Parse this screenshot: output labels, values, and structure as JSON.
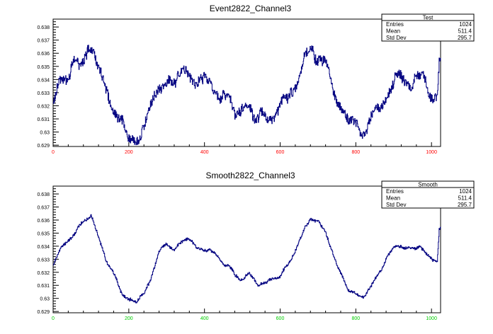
{
  "chart_data": [
    {
      "type": "line",
      "title": "Event2822_Channel3",
      "xlim": [
        0,
        1024
      ],
      "ylim": [
        0.6289,
        0.6386
      ],
      "xticks": [
        0,
        200,
        400,
        600,
        800,
        1000
      ],
      "yticks": [
        0.629,
        0.63,
        0.631,
        0.632,
        0.633,
        0.634,
        0.635,
        0.636,
        0.637,
        0.638
      ],
      "xtick_labels": [
        "0",
        "200",
        "400",
        "600",
        "800",
        "1000"
      ],
      "ytick_labels": [
        "0.629",
        "0.63",
        "0.631",
        "0.632",
        "0.633",
        "0.634",
        "0.635",
        "0.636",
        "0.637",
        "0.638"
      ],
      "xtick_color": "#ff0000",
      "line_color": "#000080",
      "noise": 0.0005,
      "stats": {
        "title": "Test",
        "rows": [
          {
            "label": "Entries",
            "value": "1024"
          },
          {
            "label": "Mean",
            "value": "511.4"
          },
          {
            "label": "Std Dev",
            "value": "295.7"
          }
        ]
      },
      "series": [
        {
          "x": [
            0,
            20,
            40,
            60,
            80,
            100,
            120,
            140,
            160,
            180,
            200,
            220,
            240,
            260,
            280,
            300,
            320,
            340,
            360,
            380,
            400,
            420,
            440,
            460,
            480,
            500,
            520,
            540,
            560,
            580,
            600,
            620,
            640,
            660,
            680,
            700,
            720,
            740,
            760,
            780,
            800,
            820,
            840,
            860,
            880,
            900,
            920,
            940,
            960,
            980,
            1000,
            1015,
            1020
          ],
          "y": [
            0.6325,
            0.6337,
            0.6345,
            0.6352,
            0.6358,
            0.6365,
            0.6345,
            0.633,
            0.6318,
            0.6305,
            0.63,
            0.6298,
            0.6302,
            0.6318,
            0.6335,
            0.6342,
            0.6338,
            0.6342,
            0.6345,
            0.634,
            0.6338,
            0.6335,
            0.633,
            0.6325,
            0.6318,
            0.6315,
            0.6318,
            0.6312,
            0.631,
            0.6315,
            0.6318,
            0.6325,
            0.6338,
            0.6352,
            0.636,
            0.6358,
            0.635,
            0.6335,
            0.6318,
            0.6305,
            0.6305,
            0.6302,
            0.6308,
            0.632,
            0.633,
            0.6338,
            0.634,
            0.634,
            0.6338,
            0.6338,
            0.633,
            0.6328,
            0.6352
          ]
        }
      ]
    },
    {
      "type": "line",
      "title": "Smooth2822_Channel3",
      "xlim": [
        0,
        1024
      ],
      "ylim": [
        0.6289,
        0.6386
      ],
      "xticks": [
        0,
        200,
        400,
        600,
        800,
        1000
      ],
      "yticks": [
        0.629,
        0.63,
        0.631,
        0.632,
        0.633,
        0.634,
        0.635,
        0.636,
        0.637,
        0.638
      ],
      "xtick_labels": [
        "0",
        "200",
        "400",
        "600",
        "800",
        "1000"
      ],
      "ytick_labels": [
        "0.629",
        "0.63",
        "0.631",
        "0.632",
        "0.633",
        "0.634",
        "0.635",
        "0.636",
        "0.637",
        "0.638"
      ],
      "xtick_color": "#00cc00",
      "line_color": "#000080",
      "noise": 0.00015,
      "stats": {
        "title": "Smooth",
        "rows": [
          {
            "label": "Entries",
            "value": "1024"
          },
          {
            "label": "Mean",
            "value": "511.4"
          },
          {
            "label": "Std Dev",
            "value": "295.7"
          }
        ]
      },
      "series": [
        {
          "x": [
            0,
            20,
            40,
            60,
            80,
            100,
            120,
            140,
            160,
            180,
            200,
            220,
            240,
            260,
            280,
            300,
            320,
            340,
            360,
            380,
            400,
            420,
            440,
            460,
            480,
            500,
            520,
            540,
            560,
            580,
            600,
            620,
            640,
            660,
            680,
            700,
            720,
            740,
            760,
            780,
            800,
            820,
            840,
            860,
            880,
            900,
            920,
            940,
            960,
            980,
            1000,
            1015,
            1020
          ],
          "y": [
            0.6325,
            0.6337,
            0.6345,
            0.6352,
            0.6358,
            0.6365,
            0.6345,
            0.633,
            0.6318,
            0.6305,
            0.63,
            0.6298,
            0.6302,
            0.6318,
            0.6335,
            0.6342,
            0.6338,
            0.6342,
            0.6345,
            0.634,
            0.6338,
            0.6335,
            0.633,
            0.6325,
            0.6318,
            0.6315,
            0.6318,
            0.6312,
            0.631,
            0.6315,
            0.6318,
            0.6325,
            0.6338,
            0.6352,
            0.636,
            0.6358,
            0.635,
            0.6335,
            0.6318,
            0.6305,
            0.6305,
            0.6302,
            0.6308,
            0.632,
            0.633,
            0.6338,
            0.634,
            0.634,
            0.6338,
            0.6338,
            0.633,
            0.6328,
            0.6352
          ]
        }
      ]
    }
  ]
}
